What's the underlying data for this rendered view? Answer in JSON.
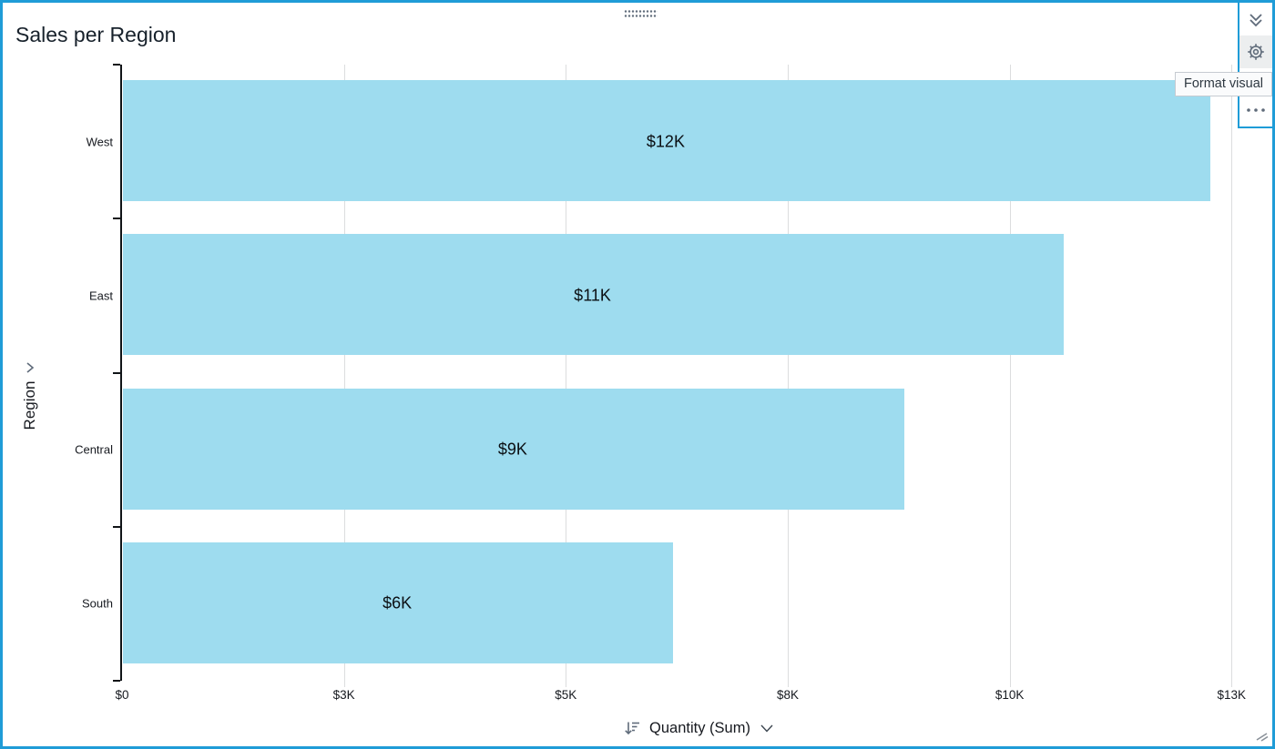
{
  "header": {
    "title": "Sales per Region"
  },
  "toolbar": {
    "tooltip": "Format visual",
    "icons": [
      "double-chevron-down",
      "gear",
      "ellipsis-menu"
    ]
  },
  "field_wells": {
    "y_field": "Region",
    "x_field": "Quantity (Sum)",
    "sort": "descending"
  },
  "colors": {
    "accent": "#1F9CD7",
    "bar": "#9EDCEF",
    "gridline": "#DCDDDE",
    "icon": "#5F6B7A"
  },
  "chart_data": {
    "type": "bar",
    "orientation": "horizontal",
    "title": "Sales per Region",
    "xlabel": "Quantity (Sum)",
    "ylabel": "Region",
    "categories": [
      "West",
      "East",
      "Central",
      "South"
    ],
    "values": [
      12250,
      10600,
      8800,
      6200
    ],
    "data_labels": [
      "$12K",
      "$11K",
      "$9K",
      "$6K"
    ],
    "axis_max": 13000,
    "x_ticks": [
      {
        "value": 0,
        "label": "$0"
      },
      {
        "value": 2500,
        "label": "$3K"
      },
      {
        "value": 5000,
        "label": "$5K"
      },
      {
        "value": 7500,
        "label": "$8K"
      },
      {
        "value": 10000,
        "label": "$10K"
      },
      {
        "value": 12500,
        "label": "$13K"
      }
    ],
    "grid": true,
    "legend": "none",
    "bar_color": "#9EDCEF",
    "sort": "descending"
  }
}
